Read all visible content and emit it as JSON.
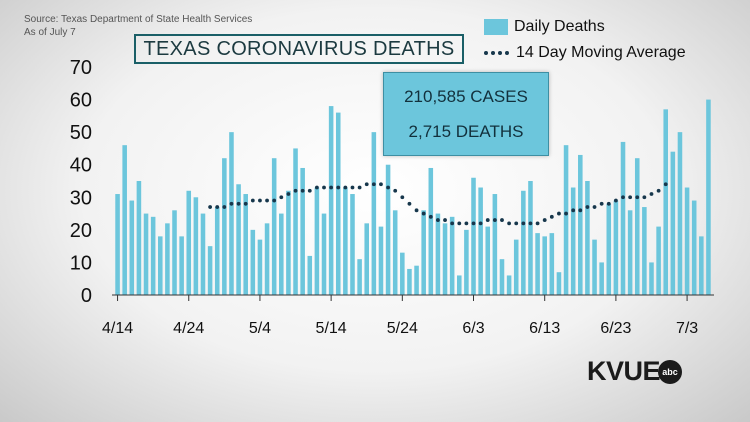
{
  "source": {
    "line1": "Source: Texas Department of State Health Services",
    "line2": "As of July 7"
  },
  "title": "TEXAS CORONAVIRUS DEATHS",
  "legend": {
    "bars": "Daily Deaths",
    "line": "14 Day Moving Average"
  },
  "info_box": {
    "cases": "210,585 CASES",
    "deaths": "2,715 DEATHS"
  },
  "logo": {
    "text": "KVUE",
    "badge": "abc"
  },
  "colors": {
    "bar": "#6cc6dc",
    "line": "#17374c",
    "box": "#6cc6dc"
  },
  "chart_data": {
    "type": "bar",
    "title": "TEXAS CORONAVIRUS DEATHS",
    "ylim": [
      0,
      70
    ],
    "yticks": [
      0,
      10,
      20,
      30,
      40,
      50,
      60,
      70
    ],
    "xticks": [
      "4/14",
      "4/24",
      "5/4",
      "5/14",
      "5/24",
      "6/3",
      "6/13",
      "6/23",
      "7/3"
    ],
    "x_start": "4/14",
    "x_end": "7/6",
    "grid": false,
    "legend_position": "top-right",
    "series": [
      {
        "name": "Daily Deaths",
        "type": "bar",
        "values": [
          31,
          46,
          29,
          35,
          25,
          24,
          18,
          22,
          26,
          18,
          32,
          30,
          25,
          15,
          27,
          42,
          50,
          34,
          31,
          20,
          17,
          22,
          42,
          25,
          32,
          45,
          39,
          12,
          33,
          25,
          58,
          56,
          33,
          31,
          11,
          22,
          50,
          21,
          40,
          26,
          13,
          8,
          9,
          26,
          39,
          25,
          22,
          24,
          6,
          20,
          36,
          33,
          21,
          31,
          11,
          6,
          17,
          32,
          35,
          19,
          18,
          19,
          7,
          46,
          33,
          43,
          35,
          17,
          10,
          28,
          29,
          47,
          26,
          42,
          27,
          10,
          21,
          57,
          44,
          50,
          33,
          29,
          18,
          60
        ]
      },
      {
        "name": "14 Day Moving Average",
        "type": "line",
        "start": "4/27",
        "values": [
          27,
          27,
          27,
          28,
          28,
          28,
          29,
          29,
          29,
          29,
          30,
          31,
          32,
          32,
          32,
          33,
          33,
          33,
          33,
          33,
          33,
          33,
          34,
          34,
          34,
          33,
          32,
          30,
          28,
          26,
          25,
          24,
          23,
          23,
          22,
          22,
          22,
          22,
          22,
          23,
          23,
          23,
          22,
          22,
          22,
          22,
          22,
          23,
          24,
          25,
          25,
          26,
          26,
          27,
          27,
          28,
          28,
          29,
          30,
          30,
          30,
          30,
          31,
          32,
          34
        ]
      }
    ]
  }
}
